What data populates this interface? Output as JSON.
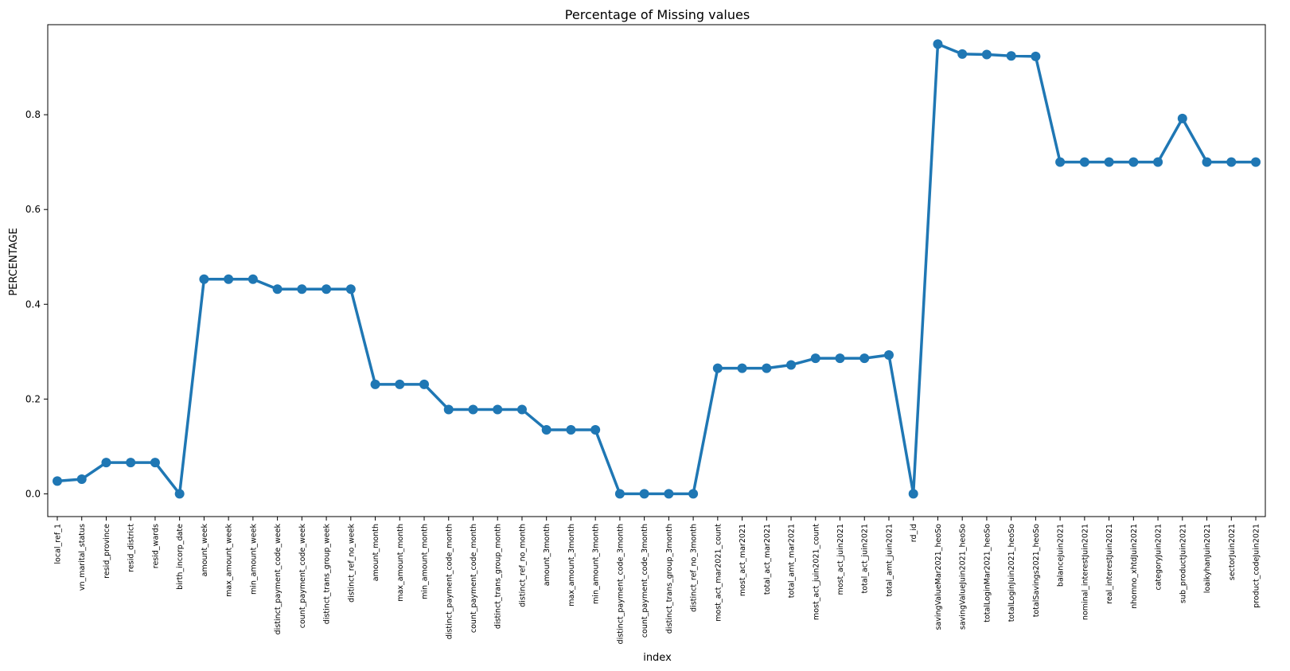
{
  "chart_data": {
    "type": "line",
    "title": "Percentage of Missing values",
    "xlabel": "index",
    "ylabel": "PERCENTAGE",
    "ylim": [
      -0.048,
      0.99
    ],
    "yticks": [
      0.0,
      0.2,
      0.4,
      0.6,
      0.8
    ],
    "ytick_labels": [
      "0.0",
      "0.2",
      "0.4",
      "0.6",
      "0.8"
    ],
    "grid": false,
    "color": "#1f77b4",
    "categories": [
      "local_ref_1",
      "vn_marital_status",
      "resid_province",
      "resid_district",
      "resid_wards",
      "birth_incorp_date",
      "amount_week",
      "max_amount_week",
      "min_amount_week",
      "distinct_payment_code_week",
      "count_payment_code_week",
      "distinct_trans_group_week",
      "distinct_ref_no_week",
      "amount_month",
      "max_amount_month",
      "min_amount_month",
      "distinct_payment_code_month",
      "count_payment_code_month",
      "distinct_trans_group_month",
      "distinct_ref_no_month",
      "amount_3month",
      "max_amount_3month",
      "min_amount_3month",
      "distinct_payment_code_3month",
      "count_payment_code_3month",
      "distinct_trans_group_3month",
      "distinct_ref_no_3month",
      "most_act_mar2021_count",
      "most_act_mar2021",
      "total_act_mar2021",
      "total_amt_mar2021",
      "most_act_juin2021_count",
      "most_act_juin2021",
      "total_act_juin2021",
      "total_amt_juin2021",
      "rd_id",
      "savingValueMar2021_heoSo",
      "savingValueJuin2021_heoSo",
      "totalLoginMar2021_heoSo",
      "totalLoginJuin2021_heoSo",
      "totalSavings2021_heoSo",
      "balanceJuin2021",
      "nominal_interestJuin2021",
      "real_interestJuin2021",
      "nhomno_xhtdJuin2021",
      "categoryJuin2021",
      "sub_productJuin2021",
      "loaikyhanJuin2021",
      "sectorJuin2021",
      "product_codeJuin2021"
    ],
    "series": [
      {
        "values": [
          0.027,
          0.031,
          0.066,
          0.066,
          0.066,
          0.0,
          0.453,
          0.453,
          0.453,
          0.432,
          0.432,
          0.432,
          0.432,
          0.231,
          0.231,
          0.231,
          0.178,
          0.178,
          0.178,
          0.178,
          0.135,
          0.135,
          0.135,
          0.0,
          0.0,
          0.0,
          0.0,
          0.265,
          0.265,
          0.265,
          0.272,
          0.286,
          0.286,
          0.286,
          0.293,
          0.0,
          0.949,
          0.928,
          0.927,
          0.924,
          0.923,
          0.7,
          0.7,
          0.7,
          0.7,
          0.7,
          0.792,
          0.7,
          0.7,
          0.7
        ]
      }
    ]
  }
}
